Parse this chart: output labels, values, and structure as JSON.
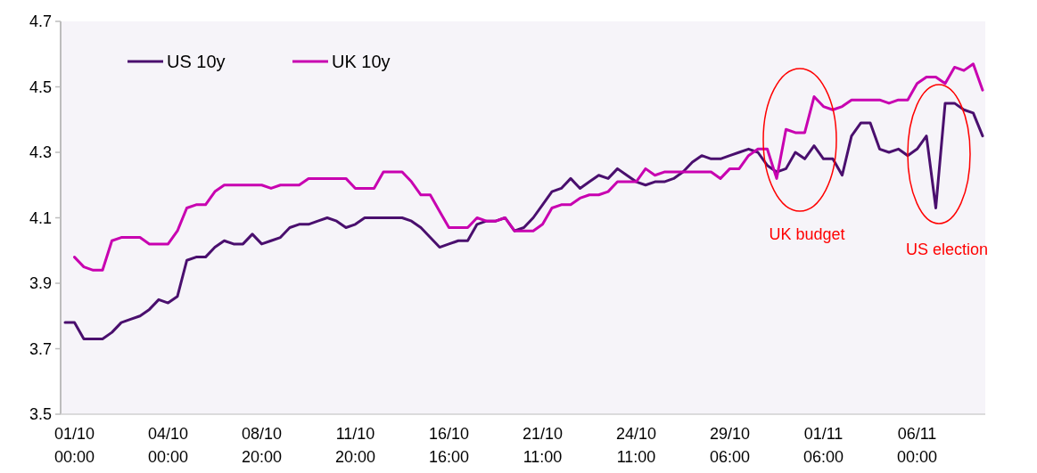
{
  "chart_data": {
    "type": "line",
    "categories": [
      null,
      "01/10 00:00",
      null,
      null,
      null,
      null,
      null,
      null,
      null,
      null,
      null,
      "04/10 00:00",
      null,
      null,
      null,
      null,
      null,
      null,
      null,
      null,
      null,
      "08/10 20:00",
      null,
      null,
      null,
      null,
      null,
      null,
      null,
      null,
      null,
      "11/10 20:00",
      null,
      null,
      null,
      null,
      null,
      null,
      null,
      null,
      null,
      "16/10 16:00",
      null,
      null,
      null,
      null,
      null,
      null,
      null,
      null,
      null,
      "21/10 11:00",
      null,
      null,
      null,
      null,
      null,
      null,
      null,
      null,
      null,
      "24/10 11:00",
      null,
      null,
      null,
      null,
      null,
      null,
      null,
      null,
      null,
      "29/10 06:00",
      null,
      null,
      null,
      null,
      null,
      null,
      null,
      null,
      null,
      "01/11 06:00",
      null,
      null,
      null,
      null,
      null,
      null,
      null,
      null,
      null,
      "06/11 00:00",
      null,
      null,
      null,
      null,
      null,
      null,
      null
    ],
    "series": [
      {
        "name": "US 10y",
        "color": "#4a0f6e",
        "values": [
          3.78,
          3.78,
          3.73,
          3.73,
          3.73,
          3.75,
          3.78,
          3.79,
          3.8,
          3.82,
          3.85,
          3.84,
          3.86,
          3.97,
          3.98,
          3.98,
          4.01,
          4.03,
          4.02,
          4.02,
          4.05,
          4.02,
          4.03,
          4.04,
          4.07,
          4.08,
          4.08,
          4.09,
          4.1,
          4.09,
          4.07,
          4.08,
          4.1,
          4.1,
          4.1,
          4.1,
          4.1,
          4.09,
          4.07,
          4.04,
          4.01,
          4.02,
          4.03,
          4.03,
          4.08,
          4.09,
          4.09,
          4.1,
          4.06,
          4.07,
          4.1,
          4.14,
          4.18,
          4.19,
          4.22,
          4.19,
          4.21,
          4.23,
          4.22,
          4.25,
          4.23,
          4.21,
          4.2,
          4.21,
          4.21,
          4.22,
          4.24,
          4.27,
          4.29,
          4.28,
          4.28,
          4.29,
          4.3,
          4.31,
          4.3,
          4.26,
          4.24,
          4.25,
          4.3,
          4.28,
          4.32,
          4.28,
          4.28,
          4.23,
          4.35,
          4.39,
          4.39,
          4.31,
          4.3,
          4.31,
          4.29,
          4.31,
          4.35,
          4.13,
          4.45,
          4.45,
          4.43,
          4.42,
          4.35
        ]
      },
      {
        "name": "UK 10y",
        "color": "#c800b0",
        "values": [
          null,
          3.98,
          3.95,
          3.94,
          3.94,
          4.03,
          4.04,
          4.04,
          4.04,
          4.02,
          4.02,
          4.02,
          4.06,
          4.13,
          4.14,
          4.14,
          4.18,
          4.2,
          4.2,
          4.2,
          4.2,
          4.2,
          4.19,
          4.2,
          4.2,
          4.2,
          4.22,
          4.22,
          4.22,
          4.22,
          4.22,
          4.19,
          4.19,
          4.19,
          4.24,
          4.24,
          4.24,
          4.21,
          4.17,
          4.17,
          4.12,
          4.07,
          4.07,
          4.07,
          4.1,
          4.09,
          4.09,
          4.1,
          4.06,
          4.06,
          4.06,
          4.08,
          4.13,
          4.14,
          4.14,
          4.16,
          4.17,
          4.17,
          4.18,
          4.21,
          4.21,
          4.21,
          4.25,
          4.23,
          4.24,
          4.24,
          4.24,
          4.24,
          4.24,
          4.24,
          4.22,
          4.25,
          4.25,
          4.29,
          4.31,
          4.31,
          4.22,
          4.37,
          4.36,
          4.36,
          4.47,
          4.44,
          4.43,
          4.44,
          4.46,
          4.46,
          4.46,
          4.46,
          4.45,
          4.46,
          4.46,
          4.51,
          4.53,
          4.53,
          4.51,
          4.56,
          4.55,
          4.57,
          4.49
        ]
      }
    ],
    "ylim": [
      3.5,
      4.7
    ],
    "yticks": [
      3.5,
      3.7,
      3.9,
      4.1,
      4.3,
      4.5,
      4.7
    ],
    "legend": "top left",
    "grid": false,
    "marker": "none",
    "line_style": "solid",
    "annotations": [
      "UK budget",
      "US election"
    ]
  }
}
